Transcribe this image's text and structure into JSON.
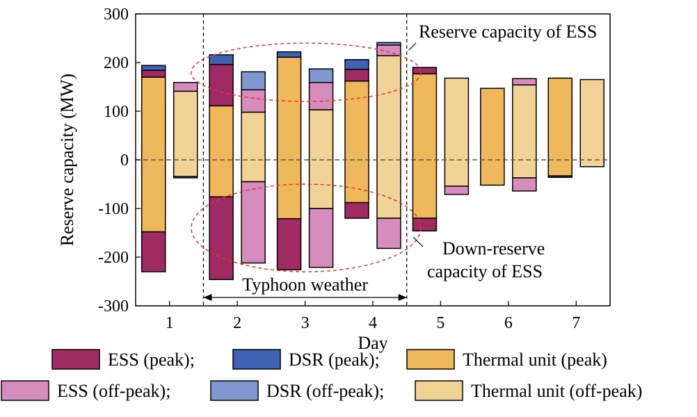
{
  "chart_data": {
    "type": "bar",
    "xlabel": "Day",
    "ylabel": "Reserve capacity (MW)",
    "ylim": [
      -300,
      300
    ],
    "yticks": [
      300,
      200,
      100,
      0,
      -100,
      -200,
      -300
    ],
    "yticklabels": [
      "300",
      "200",
      "100",
      "0",
      "-100",
      "-200",
      "-300"
    ],
    "categories": [
      "1",
      "2",
      "3",
      "4",
      "5",
      "6",
      "7"
    ],
    "colors": {
      "ess_peak": "#a02a62",
      "dsr_peak": "#3f62b2",
      "thermal_peak": "#efb85a",
      "ess_offpeak": "#d68cbc",
      "dsr_offpeak": "#8098d2",
      "thermal_offpeak": "#f2d396"
    },
    "series": [
      {
        "name": "ESS (peak);",
        "key": "ess_peak"
      },
      {
        "name": "DSR (peak);",
        "key": "dsr_peak"
      },
      {
        "name": "Thermal unit (peak)",
        "key": "thermal_peak"
      },
      {
        "name": "ESS (off-peak);",
        "key": "ess_offpeak"
      },
      {
        "name": "DSR (off-peak);",
        "key": "dsr_offpeak"
      },
      {
        "name": "Thermal unit (off-peak)",
        "key": "thermal_offpeak"
      }
    ],
    "bars": [
      {
        "day": "1",
        "period": "peak",
        "thermal": [
          -148,
          170
        ],
        "ess_up": [
          170,
          184
        ],
        "dsr_up": [
          184,
          194
        ],
        "ess_down": [
          -230,
          -148
        ],
        "dsr_down": null
      },
      {
        "day": "1",
        "period": "off-peak",
        "thermal": [
          -34,
          141
        ],
        "ess_up": [
          141,
          159
        ],
        "dsr_up": null,
        "ess_down": null,
        "dsr_down": [
          -37,
          -34
        ]
      },
      {
        "day": "2",
        "period": "peak",
        "thermal": [
          -76,
          111
        ],
        "ess_up": [
          111,
          196
        ],
        "dsr_up": [
          196,
          216
        ],
        "ess_down": [
          -246,
          -76
        ],
        "dsr_down": null
      },
      {
        "day": "2",
        "period": "off-peak",
        "thermal": [
          -45,
          98
        ],
        "ess_up": [
          98,
          144
        ],
        "dsr_up": [
          144,
          181
        ],
        "ess_down": [
          -212,
          -45
        ],
        "dsr_down": null
      },
      {
        "day": "3",
        "period": "peak",
        "thermal": [
          -121,
          211
        ],
        "ess_up": null,
        "dsr_up": [
          211,
          222
        ],
        "ess_down": [
          -226,
          -121
        ],
        "dsr_down": null
      },
      {
        "day": "3",
        "period": "off-peak",
        "thermal": [
          -100,
          103
        ],
        "ess_up": [
          103,
          159
        ],
        "dsr_up": [
          159,
          187
        ],
        "ess_down": [
          -221,
          -100
        ],
        "dsr_down": null
      },
      {
        "day": "4",
        "period": "peak",
        "thermal": [
          -88,
          162
        ],
        "ess_up": [
          162,
          186
        ],
        "dsr_up": [
          186,
          206
        ],
        "ess_down": [
          -120,
          -88
        ],
        "dsr_down": null
      },
      {
        "day": "4",
        "period": "off-peak",
        "thermal": [
          -120,
          214
        ],
        "ess_up": [
          214,
          236
        ],
        "dsr_up": [
          236,
          241
        ],
        "ess_down": [
          -182,
          -120
        ],
        "dsr_down": null
      },
      {
        "day": "5",
        "period": "peak",
        "thermal": [
          -120,
          177
        ],
        "ess_up": [
          177,
          190
        ],
        "dsr_up": null,
        "ess_down": [
          -146,
          -120
        ],
        "dsr_down": null
      },
      {
        "day": "5",
        "period": "off-peak",
        "thermal": [
          -54,
          168
        ],
        "ess_up": null,
        "dsr_up": null,
        "ess_down": [
          -71,
          -54
        ],
        "dsr_down": null
      },
      {
        "day": "6",
        "period": "peak",
        "thermal": [
          -52,
          147
        ],
        "ess_up": null,
        "dsr_up": null,
        "ess_down": null,
        "dsr_down": null
      },
      {
        "day": "6",
        "period": "off-peak",
        "thermal": [
          -37,
          154
        ],
        "ess_up": [
          154,
          167
        ],
        "dsr_up": null,
        "ess_down": [
          -64,
          -37
        ],
        "dsr_down": null
      },
      {
        "day": "7",
        "period": "peak",
        "thermal": [
          -33,
          168
        ],
        "ess_up": null,
        "dsr_up": null,
        "ess_down": null,
        "dsr_down": [
          -36,
          -33
        ]
      },
      {
        "day": "7",
        "period": "off-peak",
        "thermal": [
          -14,
          165
        ],
        "ess_up": null,
        "dsr_up": null,
        "ess_down": null,
        "dsr_down": null
      }
    ],
    "annotations": {
      "reserve_up": "Reserve capacity of ESS",
      "reserve_down_line1": "Down-reserve",
      "reserve_down_line2": "capacity of ESS",
      "typhoon": "Typhoon weather"
    },
    "typhoon_span": [
      1.5,
      4.5
    ],
    "grid": false,
    "legend_position": "bottom"
  }
}
